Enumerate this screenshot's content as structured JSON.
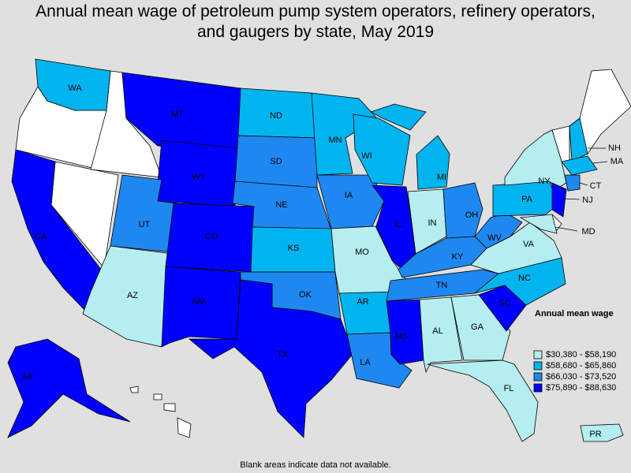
{
  "title": "Annual mean wage of petroleum pump system operators, refinery operators, and gaugers by state, May 2019",
  "legend": {
    "title": "Annual mean wage",
    "items": [
      {
        "label": "$30,380 - $58,190",
        "color": "#b4eef0",
        "states": [
          "AZ",
          "MO",
          "IN",
          "AL",
          "GA",
          "FL",
          "NY",
          "VA",
          "MD",
          "PR"
        ]
      },
      {
        "label": "$58,680 - $65,860",
        "color": "#00b4f0",
        "states": [
          "WA",
          "ND",
          "MN",
          "WI",
          "MI",
          "KS",
          "AR",
          "NC",
          "PA",
          "NH",
          "MA"
        ]
      },
      {
        "label": "$66,030 - $73,520",
        "color": "#1e88f0",
        "states": [
          "SD",
          "NE",
          "IA",
          "UT",
          "OH",
          "KY",
          "WV",
          "TN",
          "OK",
          "LA",
          "CT"
        ]
      },
      {
        "label": "$75,890 - $88,630",
        "color": "#0000ff",
        "states": [
          "MT",
          "WY",
          "CO",
          "NM",
          "TX",
          "CA",
          "IL",
          "MS",
          "SC",
          "NJ",
          "AK"
        ]
      }
    ]
  },
  "no_data_color": "#ffffff",
  "footnote": "Blank areas indicate data not available."
}
